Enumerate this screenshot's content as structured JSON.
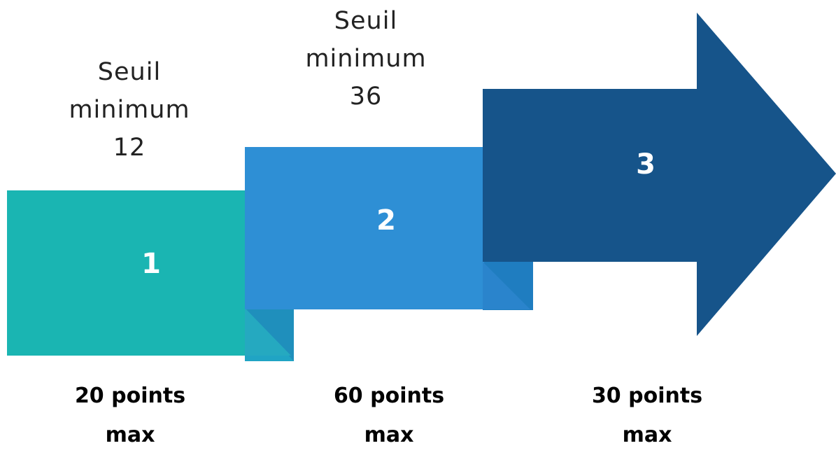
{
  "steps": [
    {
      "number": "1",
      "threshold_line1": "Seuil",
      "threshold_line2": "minimum",
      "threshold_value": "12",
      "points_line1": "20 points",
      "points_line2": "max",
      "color": "#1ab5b2"
    },
    {
      "number": "2",
      "threshold_line1": "Seuil",
      "threshold_line2": "minimum",
      "threshold_value": "36",
      "points_line1": "60 points",
      "points_line2": "max",
      "color": "#2e8fd5"
    },
    {
      "number": "3",
      "threshold_line1": "",
      "threshold_line2": "",
      "threshold_value": "",
      "points_line1": "30 points",
      "points_line2": "max",
      "color": "#16548a"
    }
  ]
}
